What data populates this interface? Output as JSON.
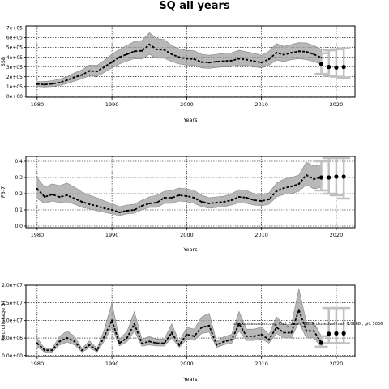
{
  "title": "SQ all years",
  "annotation": "stockassessment.org, Cod_Faroes_2019_closedvalfinal, f10868 , git: 5036",
  "chart_data": [
    {
      "type": "line",
      "title": "",
      "xlabel": "Years",
      "ylabel": "SSB",
      "xlim": [
        1978.5,
        2022.5
      ],
      "ylim": [
        -10000,
        720000
      ],
      "xticks": [
        1980,
        1990,
        2000,
        2010,
        2020
      ],
      "xtick_labels": [
        "1980",
        "1990",
        "2000",
        "2010",
        "2020"
      ],
      "yticks": [
        0,
        100000,
        200000,
        300000,
        400000,
        500000,
        600000,
        700000
      ],
      "ytick_labels": [
        "0e+00",
        "1e+05",
        "2e+05",
        "3e+05",
        "4e+05",
        "5e+05",
        "6e+05",
        "7e+05"
      ],
      "grid": true,
      "x": [
        1980,
        1981,
        1982,
        1983,
        1984,
        1985,
        1986,
        1987,
        1988,
        1989,
        1990,
        1991,
        1992,
        1993,
        1994,
        1995,
        1996,
        1997,
        1998,
        1999,
        2000,
        2001,
        2002,
        2003,
        2004,
        2005,
        2006,
        2007,
        2008,
        2009,
        2010,
        2011,
        2012,
        2013,
        2014,
        2015,
        2016,
        2017,
        2018
      ],
      "estimate": [
        125000,
        120000,
        128000,
        140000,
        165000,
        195000,
        220000,
        260000,
        255000,
        300000,
        350000,
        400000,
        430000,
        460000,
        465000,
        530000,
        480000,
        475000,
        430000,
        400000,
        385000,
        380000,
        350000,
        345000,
        355000,
        360000,
        365000,
        385000,
        375000,
        360000,
        345000,
        380000,
        445000,
        425000,
        445000,
        460000,
        455000,
        430000,
        395000
      ],
      "lower": [
        100000,
        95000,
        100000,
        110000,
        130000,
        155000,
        180000,
        210000,
        205000,
        245000,
        290000,
        330000,
        360000,
        385000,
        380000,
        430000,
        390000,
        390000,
        355000,
        330000,
        320000,
        315000,
        290000,
        285000,
        295000,
        300000,
        305000,
        320000,
        315000,
        300000,
        290000,
        320000,
        370000,
        355000,
        375000,
        385000,
        375000,
        355000,
        325000
      ],
      "upper": [
        150000,
        150000,
        160000,
        175000,
        200000,
        240000,
        270000,
        320000,
        315000,
        370000,
        430000,
        480000,
        520000,
        560000,
        570000,
        650000,
        590000,
        580000,
        520000,
        485000,
        470000,
        465000,
        430000,
        420000,
        430000,
        440000,
        445000,
        470000,
        455000,
        440000,
        420000,
        460000,
        540000,
        510000,
        530000,
        550000,
        545000,
        520000,
        480000
      ],
      "forecast": {
        "x": [
          2018,
          2019,
          2020,
          2021
        ],
        "points": [
          330000,
          300000,
          295000,
          300000
        ],
        "interval_low": [
          230000,
          210000,
          200000,
          190000
        ],
        "interval_high": [
          440000,
          470000,
          480000,
          490000
        ]
      }
    },
    {
      "type": "line",
      "title": "",
      "xlabel": "Years",
      "ylabel": "F3-7",
      "xlim": [
        1978.5,
        2022.5
      ],
      "ylim": [
        -0.01,
        0.43
      ],
      "xticks": [
        1980,
        1990,
        2000,
        2010,
        2020
      ],
      "xtick_labels": [
        "1980",
        "1990",
        "2000",
        "2010",
        "2020"
      ],
      "yticks": [
        0.0,
        0.1,
        0.2,
        0.3,
        0.4
      ],
      "ytick_labels": [
        "0.0",
        "0.1",
        "0.2",
        "0.3",
        "0.4"
      ],
      "grid": true,
      "x": [
        1980,
        1981,
        1982,
        1983,
        1984,
        1985,
        1986,
        1987,
        1988,
        1989,
        1990,
        1991,
        1992,
        1993,
        1994,
        1995,
        1996,
        1997,
        1998,
        1999,
        2000,
        2001,
        2002,
        2003,
        2004,
        2005,
        2006,
        2007,
        2008,
        2009,
        2010,
        2011,
        2012,
        2013,
        2014,
        2015,
        2016,
        2017,
        2018
      ],
      "estimate": [
        0.23,
        0.18,
        0.195,
        0.18,
        0.19,
        0.17,
        0.15,
        0.135,
        0.125,
        0.11,
        0.1,
        0.085,
        0.095,
        0.1,
        0.125,
        0.14,
        0.145,
        0.175,
        0.175,
        0.19,
        0.185,
        0.175,
        0.15,
        0.14,
        0.145,
        0.15,
        0.16,
        0.18,
        0.175,
        0.16,
        0.155,
        0.165,
        0.215,
        0.235,
        0.245,
        0.26,
        0.315,
        0.29,
        0.3
      ],
      "lower": [
        0.17,
        0.14,
        0.155,
        0.145,
        0.15,
        0.135,
        0.115,
        0.105,
        0.095,
        0.085,
        0.075,
        0.065,
        0.075,
        0.08,
        0.1,
        0.115,
        0.115,
        0.14,
        0.14,
        0.155,
        0.15,
        0.14,
        0.12,
        0.11,
        0.115,
        0.12,
        0.13,
        0.145,
        0.14,
        0.13,
        0.125,
        0.135,
        0.18,
        0.195,
        0.2,
        0.215,
        0.255,
        0.23,
        0.24
      ],
      "upper": [
        0.3,
        0.24,
        0.26,
        0.25,
        0.265,
        0.24,
        0.21,
        0.19,
        0.175,
        0.155,
        0.14,
        0.12,
        0.13,
        0.135,
        0.16,
        0.18,
        0.19,
        0.215,
        0.22,
        0.235,
        0.23,
        0.22,
        0.19,
        0.175,
        0.18,
        0.185,
        0.2,
        0.225,
        0.22,
        0.2,
        0.195,
        0.205,
        0.265,
        0.29,
        0.3,
        0.315,
        0.395,
        0.37,
        0.38
      ],
      "forecast": {
        "x": [
          2018,
          2019,
          2020,
          2021
        ],
        "points": [
          0.3,
          0.3,
          0.305,
          0.305
        ],
        "interval_low": [
          0.22,
          0.2,
          0.19,
          0.17
        ],
        "interval_high": [
          0.4,
          0.42,
          0.42,
          0.42
        ]
      }
    },
    {
      "type": "line",
      "title": "",
      "xlabel": "Years",
      "ylabel": "Recruits(age 3)",
      "xlim": [
        1978.5,
        2022.5
      ],
      "ylim": [
        -300000,
        20000000
      ],
      "xticks": [
        1980,
        1990,
        2000,
        2010,
        2020
      ],
      "xtick_labels": [
        "1980",
        "1990",
        "2000",
        "2010",
        "2020"
      ],
      "yticks": [
        0,
        5000000,
        10000000,
        15000000,
        20000000
      ],
      "ytick_labels": [
        "0.0e+00",
        "5.0e+06",
        "1.0e+07",
        "1.5e+07",
        "2.0e+07"
      ],
      "grid": true,
      "x": [
        1980,
        1981,
        1982,
        1983,
        1984,
        1985,
        1986,
        1987,
        1988,
        1989,
        1990,
        1991,
        1992,
        1993,
        1994,
        1995,
        1996,
        1997,
        1998,
        1999,
        2000,
        2001,
        2002,
        2003,
        2004,
        2005,
        2006,
        2007,
        2008,
        2009,
        2010,
        2011,
        2012,
        2013,
        2014,
        2015,
        2016,
        2017,
        2018
      ],
      "estimate": [
        3500000,
        1500000,
        1500000,
        4000000,
        5000000,
        4000000,
        1500000,
        3000000,
        1500000,
        5500000,
        10000000,
        3500000,
        5000000,
        9000000,
        3500000,
        4000000,
        3500000,
        3500000,
        6500000,
        3000000,
        6000000,
        5500000,
        8000000,
        8500000,
        3000000,
        4000000,
        4500000,
        9000000,
        5500000,
        5500000,
        6000000,
        4500000,
        8000000,
        6500000,
        6500000,
        13000000,
        7000000,
        7000000,
        3600000
      ],
      "lower": [
        2500000,
        1000000,
        1000000,
        3000000,
        3800000,
        3000000,
        1000000,
        2200000,
        1000000,
        4200000,
        8000000,
        2700000,
        3900000,
        7000000,
        2700000,
        3000000,
        2700000,
        2700000,
        5000000,
        2300000,
        4700000,
        4300000,
        6300000,
        6700000,
        2300000,
        3100000,
        3500000,
        7000000,
        4300000,
        4300000,
        4700000,
        3500000,
        6300000,
        5000000,
        5000000,
        9500000,
        5000000,
        5000000,
        2400000
      ],
      "upper": [
        5000000,
        2000000,
        2000000,
        5500000,
        7000000,
        5500000,
        2000000,
        4200000,
        2000000,
        7500000,
        15000000,
        4700000,
        6800000,
        12500000,
        4700000,
        5400000,
        4700000,
        4700000,
        9000000,
        4000000,
        8000000,
        7500000,
        11000000,
        12000000,
        4000000,
        5400000,
        6000000,
        12500000,
        7500000,
        7500000,
        8100000,
        6000000,
        11000000,
        8800000,
        8800000,
        19000000,
        9500000,
        9500000,
        5500000
      ],
      "forecast": {
        "x": [
          2018,
          2019,
          2020,
          2021
        ],
        "points": [
          3600000,
          6200000,
          6300000,
          6300000
        ],
        "interval_low": [
          2500000,
          3500000,
          3500000,
          3500000
        ],
        "interval_high": [
          5500000,
          13500000,
          13500000,
          13500000
        ]
      }
    }
  ]
}
